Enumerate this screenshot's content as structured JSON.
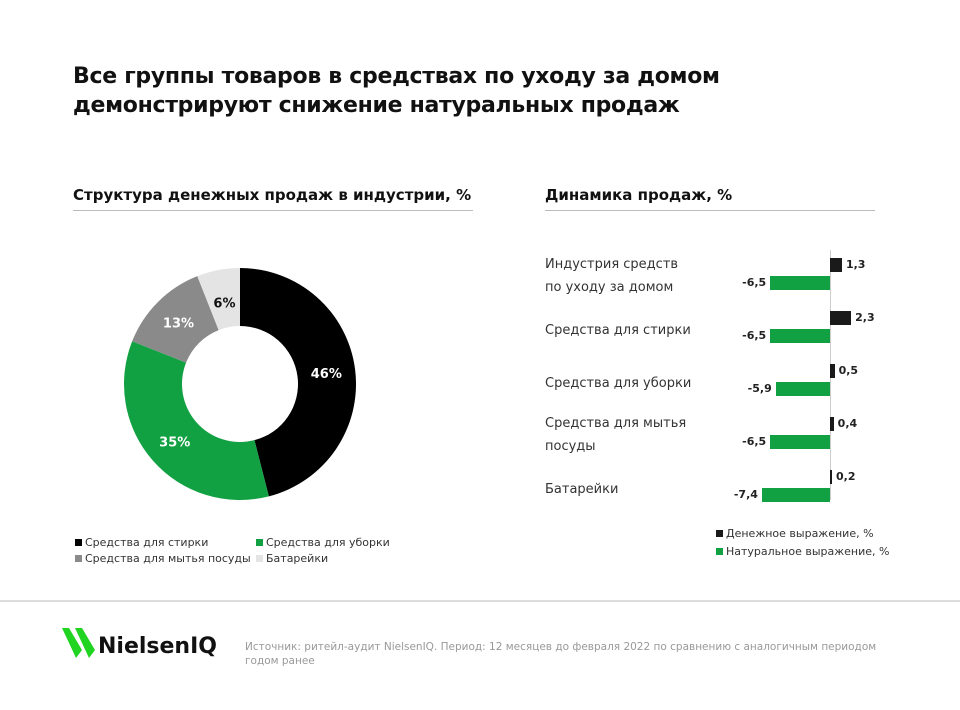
{
  "title_line1": "Все группы товаров в средствах по уходу за домом",
  "title_line2": "демонстрируют снижение натуральных продаж",
  "brand": "NielsenIQ",
  "source": "Источник: ритейл-аудит NielsenIQ. Период: 12 месяцев до февраля 2022 по сравнению с аналогичным периодом годом ранее",
  "chart_data": [
    {
      "type": "pie",
      "title": "Структура денежных продаж в индустрии, %",
      "categories": [
        "Средства для стирки",
        "Средства для уборки",
        "Средства для мытья посуды",
        "Батарейки"
      ],
      "values": [
        46,
        35,
        13,
        6
      ],
      "labels": [
        "46%",
        "35%",
        "13%",
        "6%"
      ],
      "colors": [
        "#000000",
        "#12a142",
        "#8a8a8a",
        "#e4e4e4"
      ],
      "donut": true,
      "legend": "bottom"
    },
    {
      "type": "bar",
      "orientation": "horizontal",
      "title": "Динамика продаж, %",
      "categories": [
        [
          "Индустрия средств",
          "по уходу за домом"
        ],
        [
          "Средства для стирки"
        ],
        [
          "Средства для уборки"
        ],
        [
          "Средства для мытья",
          "посуды"
        ],
        [
          "Батарейки"
        ]
      ],
      "series": [
        {
          "name": "Денежное выражение, %",
          "color": "#1a1a1a",
          "values": [
            1.3,
            2.3,
            0.5,
            0.4,
            0.2
          ],
          "labels": [
            "1,3",
            "2,3",
            "0,5",
            "0,4",
            "0,2"
          ]
        },
        {
          "name": "Натуральное выражение, %",
          "color": "#12a142",
          "values": [
            -6.5,
            -6.5,
            -5.9,
            -6.5,
            -7.4
          ],
          "labels": [
            "-6,5",
            "-6,5",
            "-5,9",
            "-6,5",
            "-7,4"
          ]
        }
      ],
      "legend": "bottom-right"
    }
  ]
}
